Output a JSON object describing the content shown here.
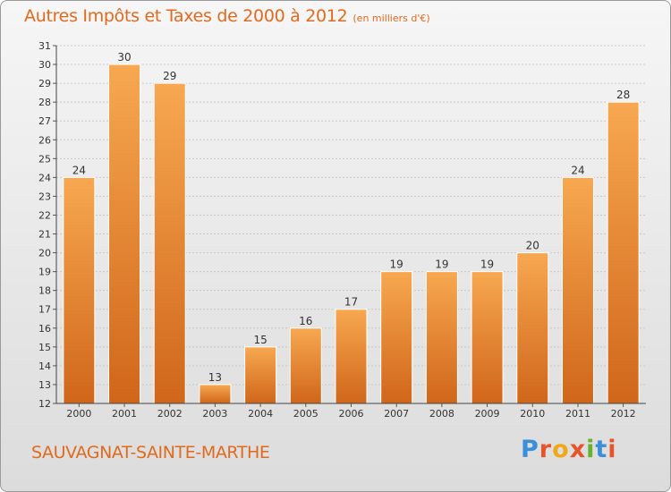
{
  "header": {
    "title": "Autres Impôts et Taxes de 2000 à 2012",
    "subtitle": "(en milliers d'€)"
  },
  "footer": {
    "commune": "SAUVAGNAT-SAINTE-MARTHE",
    "brand": "Proxiti"
  },
  "colors": {
    "bar_top": "#f7a850",
    "bar_bottom": "#d0661a",
    "title": "#e06a1e"
  },
  "chart_data": {
    "type": "bar",
    "title": "Autres Impôts et Taxes de 2000 à 2012",
    "subtitle": "(en milliers d'€)",
    "xlabel": "",
    "ylabel": "",
    "categories": [
      "2000",
      "2001",
      "2002",
      "2003",
      "2004",
      "2005",
      "2006",
      "2007",
      "2008",
      "2009",
      "2010",
      "2011",
      "2012"
    ],
    "values": [
      24,
      30,
      29,
      13,
      15,
      16,
      17,
      19,
      19,
      19,
      20,
      24,
      28
    ],
    "ylim": [
      12,
      31
    ],
    "yticks": [
      12,
      13,
      14,
      15,
      16,
      17,
      18,
      19,
      20,
      21,
      22,
      23,
      24,
      25,
      26,
      27,
      28,
      29,
      30,
      31
    ],
    "grid": true,
    "legend": "none"
  }
}
